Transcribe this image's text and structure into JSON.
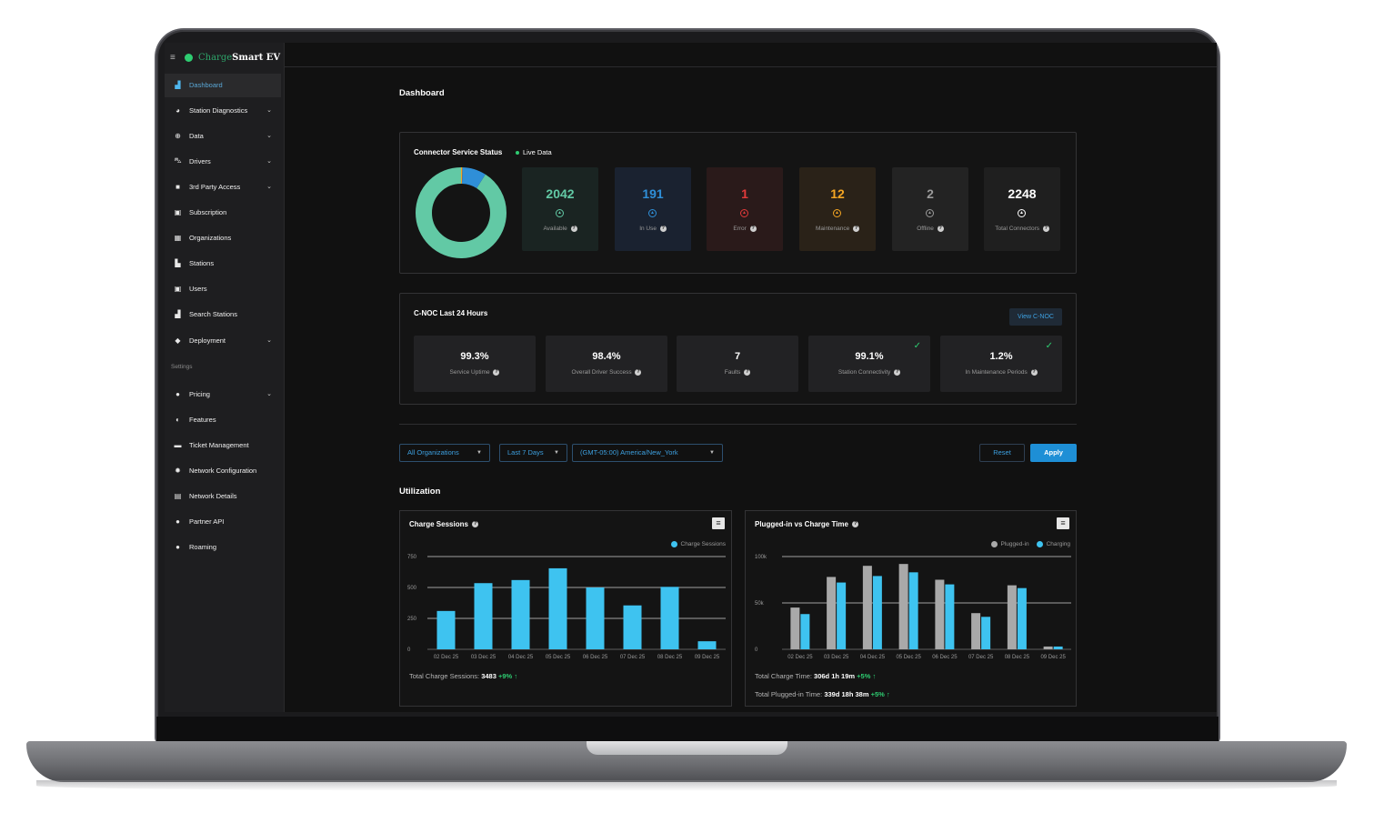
{
  "brand": {
    "part1": "Charge",
    "part2": "Smart EV"
  },
  "sidebar": {
    "items": [
      {
        "label": "Dashboard",
        "icon": "bar-chart-icon",
        "glyph": "▟",
        "chevron": false
      },
      {
        "label": "Station Diagnostics",
        "icon": "pie-chart-icon",
        "glyph": "◕",
        "chevron": true
      },
      {
        "label": "Data",
        "icon": "plus-circle-icon",
        "glyph": "⊕",
        "chevron": true
      },
      {
        "label": "Drivers",
        "icon": "car-icon",
        "glyph": "⛍",
        "chevron": true
      },
      {
        "label": "3rd Party Access",
        "icon": "lock-icon",
        "glyph": "■",
        "chevron": true
      },
      {
        "label": "Subscription",
        "icon": "calendar-icon",
        "glyph": "▣",
        "chevron": false
      },
      {
        "label": "Organizations",
        "icon": "grid-icon",
        "glyph": "▦",
        "chevron": false
      },
      {
        "label": "Stations",
        "icon": "chart-icon",
        "glyph": "▙",
        "chevron": false
      },
      {
        "label": "Users",
        "icon": "user-icon",
        "glyph": "▣",
        "chevron": false
      },
      {
        "label": "Search Stations",
        "icon": "charging-station-icon",
        "glyph": "▟",
        "chevron": false
      },
      {
        "label": "Deployment",
        "icon": "tag-icon",
        "glyph": "◆",
        "chevron": true
      }
    ],
    "settings_heading": "Settings",
    "settings_items": [
      {
        "label": "Pricing",
        "icon": "dollar-icon",
        "glyph": "●",
        "chevron": true
      },
      {
        "label": "Features",
        "icon": "toggle-icon",
        "glyph": "◐",
        "chevron": false
      },
      {
        "label": "Ticket Management",
        "icon": "ticket-icon",
        "glyph": "▬",
        "chevron": false
      },
      {
        "label": "Network Configuration",
        "icon": "gear-icon",
        "glyph": "✹",
        "chevron": false
      },
      {
        "label": "Network Details",
        "icon": "document-icon",
        "glyph": "▤",
        "chevron": false
      },
      {
        "label": "Partner API",
        "icon": "api-icon",
        "glyph": "●",
        "chevron": false
      },
      {
        "label": "Roaming",
        "icon": "globe-icon",
        "glyph": "●",
        "chevron": false
      }
    ]
  },
  "page": {
    "title": "Dashboard"
  },
  "connector_status": {
    "title": "Connector Service Status",
    "live_label": "Live Data",
    "cards": [
      {
        "value": "2042",
        "label": "Available",
        "color": "#62c9a5",
        "bg": "#1a2422"
      },
      {
        "value": "191",
        "label": "In Use",
        "color": "#2f8fd8",
        "bg": "#1a2230"
      },
      {
        "value": "1",
        "label": "Error",
        "color": "#e23a3a",
        "bg": "#2a1a1a"
      },
      {
        "value": "12",
        "label": "Maintenance",
        "color": "#f5a623",
        "bg": "#2a2218"
      },
      {
        "value": "2",
        "label": "Offline",
        "color": "#9a9a9a",
        "bg": "#232323"
      },
      {
        "value": "2248",
        "label": "Total Connectors",
        "color": "#ffffff",
        "bg": "#1f1f1f"
      }
    ]
  },
  "cnoc": {
    "title": "C-NOC Last 24 Hours",
    "view_button": "View C-NOC",
    "kpis": [
      {
        "value": "99.3%",
        "label": "Service Uptime",
        "check": false
      },
      {
        "value": "98.4%",
        "label": "Overall Driver Success",
        "check": false
      },
      {
        "value": "7",
        "label": "Faults",
        "check": false
      },
      {
        "value": "99.1%",
        "label": "Station Connectivity",
        "check": true
      },
      {
        "value": "1.2%",
        "label": "In Maintenance Periods",
        "check": true
      }
    ]
  },
  "filters": {
    "organization": "All Organizations",
    "range": "Last 7 Days",
    "timezone": "(GMT-05:00) America/New_York",
    "reset": "Reset",
    "apply": "Apply"
  },
  "utilization": {
    "title": "Utilization"
  },
  "charge_sessions": {
    "title": "Charge Sessions",
    "total_label": "Total Charge Sessions:",
    "total_value": "3483",
    "total_change": "+9%"
  },
  "plugged_vs_charge": {
    "title": "Plugged-in vs Charge Time",
    "total_charge_label": "Total Charge Time:",
    "total_charge_value": "306d 1h 19m",
    "total_charge_change": "+5%",
    "total_plugged_label": "Total Plugged-in Time:",
    "total_plugged_value": "339d 18h 38m",
    "total_plugged_change": "+5%"
  },
  "chart_data": [
    {
      "type": "pie",
      "categories": [
        "Available",
        "In Use",
        "Error",
        "Maintenance",
        "Offline"
      ],
      "values": [
        2042,
        191,
        1,
        12,
        2
      ],
      "colors": [
        "#62c9a5",
        "#2f8fd8",
        "#e23a3a",
        "#f5a623",
        "#9a9a9a"
      ]
    },
    {
      "type": "bar",
      "title": "Charge Sessions",
      "categories": [
        "02 Dec 25",
        "03 Dec 25",
        "04 Dec 25",
        "05 Dec 25",
        "06 Dec 25",
        "07 Dec 25",
        "08 Dec 25",
        "09 Dec 25"
      ],
      "series": [
        {
          "name": "Charge Sessions",
          "values": [
            310,
            535,
            560,
            655,
            500,
            355,
            505,
            65
          ],
          "color": "#3ec3f0"
        }
      ],
      "yticks": [
        "0",
        "250",
        "500",
        "750"
      ],
      "ylim": [
        0,
        750
      ],
      "legend": "top-right",
      "grid": true
    },
    {
      "type": "bar",
      "title": "Plugged-in vs Charge Time",
      "categories": [
        "02 Dec 25",
        "03 Dec 25",
        "04 Dec 25",
        "05 Dec 25",
        "06 Dec 25",
        "07 Dec 25",
        "08 Dec 25",
        "09 Dec 25"
      ],
      "series": [
        {
          "name": "Plugged-in",
          "values": [
            45000,
            78000,
            90000,
            92000,
            75000,
            39000,
            69000,
            3000
          ],
          "color": "#a9a9a9"
        },
        {
          "name": "Charging",
          "values": [
            38000,
            72000,
            79000,
            83000,
            70000,
            35000,
            66000,
            3000
          ],
          "color": "#3ec3f0"
        }
      ],
      "yticks": [
        "0",
        "50k",
        "100k"
      ],
      "ylim": [
        0,
        100000
      ],
      "legend": "top-right",
      "grid": true
    }
  ]
}
